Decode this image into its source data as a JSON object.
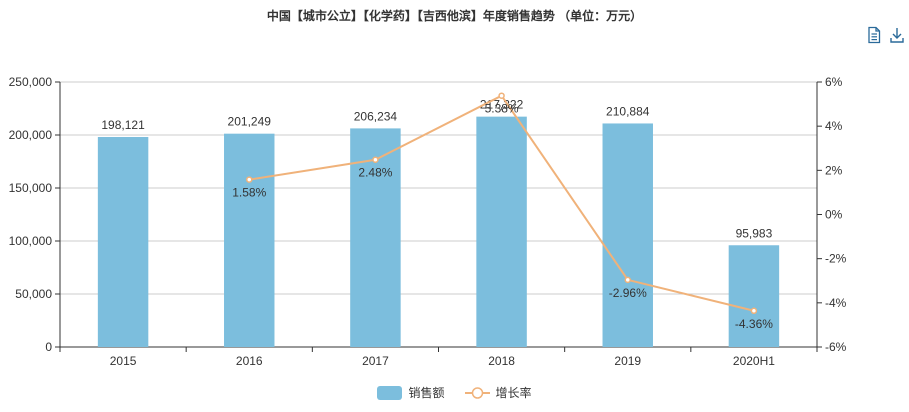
{
  "title": "中国【城市公立】【化学药】【吉西他滨】年度销售趋势 （单位：万元）",
  "toolbar": {
    "data_view_icon": "document-icon",
    "save_icon": "download-icon"
  },
  "colors": {
    "bar": "#7cbedd",
    "line": "#f0b27a",
    "axis": "#333333",
    "grid": "#cccccc"
  },
  "legend": {
    "bar_label": "销售额",
    "line_label": "增长率",
    "placement": "bottom"
  },
  "chart_data": {
    "type": "bar",
    "categories": [
      "2015",
      "2016",
      "2017",
      "2018",
      "2019",
      "2020H1"
    ],
    "series": [
      {
        "name": "销售额",
        "type": "bar",
        "axis": "left",
        "values": [
          198121,
          201249,
          206234,
          217322,
          210884,
          95983
        ],
        "labels": [
          "198,121",
          "201,249",
          "206,234",
          "217,322",
          "210,884",
          "95,983"
        ]
      },
      {
        "name": "增长率",
        "type": "line",
        "axis": "right",
        "values": [
          null,
          1.58,
          2.48,
          5.38,
          -2.96,
          -4.36
        ],
        "labels": [
          "",
          "1.58%",
          "2.48%",
          "5.38%",
          "-2.96%",
          "-4.36%"
        ]
      }
    ],
    "y_left": {
      "min": 0,
      "max": 250000,
      "ticks": [
        "0",
        "50,000",
        "100,000",
        "150,000",
        "200,000",
        "250,000"
      ]
    },
    "y_right": {
      "min": -6,
      "max": 6,
      "ticks": [
        "-6%",
        "-4%",
        "-2%",
        "0%",
        "2%",
        "4%",
        "6%"
      ]
    },
    "grid": true
  }
}
